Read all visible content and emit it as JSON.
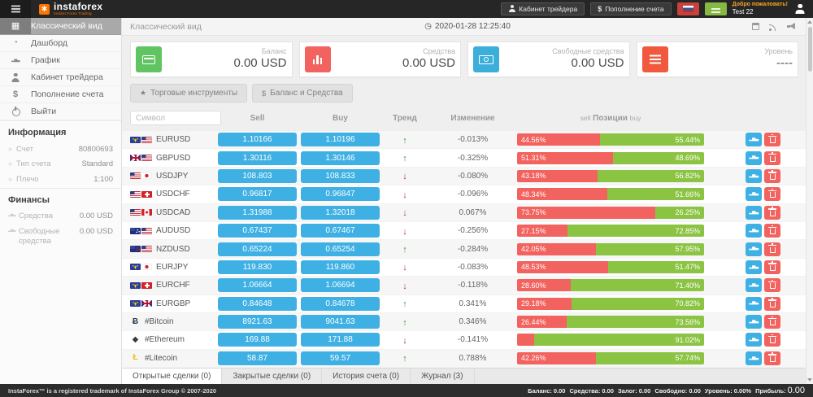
{
  "topbar": {
    "logo": "instaforex",
    "logo_tagline": "Instant Forex Trading",
    "trader_cabinet": "Кабинет трейдера",
    "deposit": "Пополнение счета",
    "welcome": "Добро пожаловать!",
    "username": "Test 22"
  },
  "sidebar": {
    "items": [
      {
        "label": "Классический вид",
        "icon": "table",
        "active": true
      },
      {
        "label": "Дашборд",
        "icon": "dashboard"
      },
      {
        "label": "График",
        "icon": "chart"
      },
      {
        "label": "Кабинет трейдера",
        "icon": "user"
      },
      {
        "label": "Пополнение счета",
        "icon": "dollar"
      },
      {
        "label": "Выйти",
        "icon": "power"
      }
    ],
    "info_header": "Информация",
    "info": [
      {
        "label": "Счет",
        "value": "80800693"
      },
      {
        "label": "Тип счета",
        "value": "Standard"
      },
      {
        "label": "Плечо",
        "value": "1:100"
      }
    ],
    "finance_header": "Финансы",
    "finance": [
      {
        "label": "Средства",
        "value": "0.00 USD"
      },
      {
        "label": "Свободные средства",
        "value": "0.00 USD"
      }
    ]
  },
  "header": {
    "title": "Классический вид",
    "datetime": "2020-01-28 12:25:40"
  },
  "cards": [
    {
      "label": "Баланс",
      "value": "0.00 USD",
      "color": "#61c462",
      "icon": "credit-card"
    },
    {
      "label": "Средства",
      "value": "0.00 USD",
      "color": "#f2625e",
      "icon": "bar-chart"
    },
    {
      "label": "Свободные средства",
      "value": "0.00 USD",
      "color": "#3bafda",
      "icon": "banknote"
    },
    {
      "label": "Уровень",
      "value": "----",
      "color": "#f0593e",
      "icon": "menu"
    }
  ],
  "toolbar": {
    "instruments_btn": "Торговые инструменты",
    "balance_btn": "Баланс и Средства"
  },
  "table": {
    "symbol_placeholder": "Символ",
    "col_sell": "Sell",
    "col_buy": "Buy",
    "col_trend": "Тренд",
    "col_change": "Изменение",
    "col_positions_sell": "sell",
    "col_positions": "Позиции",
    "col_positions_buy": "buy"
  },
  "instruments": [
    {
      "symbol": "EURUSD",
      "flags": [
        "eu",
        "us"
      ],
      "sell": "1.10166",
      "buy": "1.10196",
      "trend": "up",
      "change": "-0.013%",
      "sell_pct": "44.56%",
      "buy_pct": "55.44%",
      "sell_width": 44.56
    },
    {
      "symbol": "GBPUSD",
      "flags": [
        "gb",
        "us"
      ],
      "sell": "1.30116",
      "buy": "1.30146",
      "trend": "up",
      "change": "-0.325%",
      "sell_pct": "51.31%",
      "buy_pct": "48.69%",
      "sell_width": 51.31
    },
    {
      "symbol": "USDJPY",
      "flags": [
        "us",
        "jp"
      ],
      "sell": "108.803",
      "buy": "108.833",
      "trend": "down",
      "change": "-0.080%",
      "sell_pct": "43.18%",
      "buy_pct": "56.82%",
      "sell_width": 43.18
    },
    {
      "symbol": "USDCHF",
      "flags": [
        "us",
        "ch"
      ],
      "sell": "0.96817",
      "buy": "0.96847",
      "trend": "down",
      "change": "-0.096%",
      "sell_pct": "48.34%",
      "buy_pct": "51.66%",
      "sell_width": 48.34
    },
    {
      "symbol": "USDCAD",
      "flags": [
        "us",
        "ca"
      ],
      "sell": "1.31988",
      "buy": "1.32018",
      "trend": "down",
      "change": "0.067%",
      "sell_pct": "73.75%",
      "buy_pct": "26.25%",
      "sell_width": 73.75
    },
    {
      "symbol": "AUDUSD",
      "flags": [
        "au",
        "us"
      ],
      "sell": "0.67437",
      "buy": "0.67467",
      "trend": "down",
      "change": "-0.256%",
      "sell_pct": "27.15%",
      "buy_pct": "72.85%",
      "sell_width": 27.15
    },
    {
      "symbol": "NZDUSD",
      "flags": [
        "nz",
        "us"
      ],
      "sell": "0.65224",
      "buy": "0.65254",
      "trend": "up",
      "change": "-0.284%",
      "sell_pct": "42.05%",
      "buy_pct": "57.95%",
      "sell_width": 42.05
    },
    {
      "symbol": "EURJPY",
      "flags": [
        "eu",
        "jp"
      ],
      "sell": "119.830",
      "buy": "119.860",
      "trend": "down",
      "change": "-0.083%",
      "sell_pct": "48.53%",
      "buy_pct": "51.47%",
      "sell_width": 48.53
    },
    {
      "symbol": "EURCHF",
      "flags": [
        "eu",
        "ch"
      ],
      "sell": "1.06664",
      "buy": "1.06694",
      "trend": "down",
      "change": "-0.118%",
      "sell_pct": "28.60%",
      "buy_pct": "71.40%",
      "sell_width": 28.6
    },
    {
      "symbol": "EURGBP",
      "flags": [
        "eu",
        "gb"
      ],
      "sell": "0.84648",
      "buy": "0.84678",
      "trend": "up",
      "change": "0.341%",
      "sell_pct": "29.18%",
      "buy_pct": "70.82%",
      "sell_width": 29.18
    },
    {
      "symbol": "#Bitcoin",
      "crypto": {
        "char": "Ƀ",
        "color": "#2a3b4d"
      },
      "sell": "8921.63",
      "buy": "9041.63",
      "trend": "up",
      "change": "0.346%",
      "sell_pct": "26.44%",
      "buy_pct": "73.56%",
      "sell_width": 26.44
    },
    {
      "symbol": "#Ethereum",
      "crypto": {
        "char": "◆",
        "color": "#3c3c3d"
      },
      "sell": "169.88",
      "buy": "171.88",
      "trend": "down",
      "change": "-0.141%",
      "sell_pct": "",
      "buy_pct": "91.02%",
      "sell_width": 8.98
    },
    {
      "symbol": "#Litecoin",
      "crypto": {
        "char": "Ł",
        "color": "#f0b90b"
      },
      "sell": "58.87",
      "buy": "59.57",
      "trend": "up",
      "change": "0.788%",
      "sell_pct": "42.26%",
      "buy_pct": "57.74%",
      "sell_width": 42.26
    },
    {
      "symbol": "",
      "crypto": {
        "char": "◆",
        "color": "#7a9ec7"
      },
      "sell": "",
      "buy": "",
      "trend": "up",
      "change": "",
      "sell_pct": "",
      "buy_pct": "",
      "sell_width": 4
    }
  ],
  "tabs": [
    {
      "label": "Открытые сделки (0)",
      "active": true
    },
    {
      "label": "Закрытые сделки (0)"
    },
    {
      "label": "История счета (0)"
    },
    {
      "label": "Журнал (3)"
    }
  ],
  "footer": {
    "copyright": "InstaForex™ is a registered trademark of InstaForex Group © 2007-2020",
    "stats": [
      {
        "label": "Баланс:",
        "value": "0.00"
      },
      {
        "label": "Средства:",
        "value": "0.00"
      },
      {
        "label": "Залог:",
        "value": "0.00"
      },
      {
        "label": "Свободно:",
        "value": "0.00"
      },
      {
        "label": "Уровень:",
        "value": "0.00%"
      },
      {
        "label": "Прибыль:",
        "value": "0.00",
        "big": true
      }
    ]
  }
}
